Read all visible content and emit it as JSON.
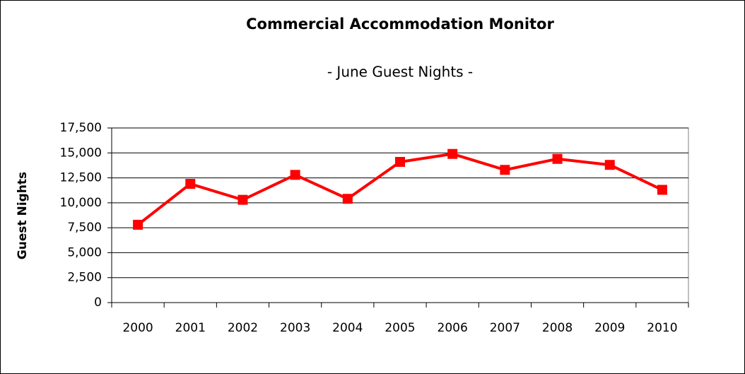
{
  "chart_data": {
    "type": "line",
    "title": "Commercial Accommodation Monitor",
    "subtitle": "- June Guest Nights -",
    "y_label": "Guest Nights",
    "categories": [
      "2000",
      "2001",
      "2002",
      "2003",
      "2004",
      "2005",
      "2006",
      "2007",
      "2008",
      "2009",
      "2010"
    ],
    "series": [
      {
        "name": "Guest Nights",
        "color": "#ff0000",
        "values": [
          7800,
          11900,
          10300,
          12800,
          10400,
          14100,
          14900,
          13300,
          14400,
          13800,
          11300
        ]
      }
    ],
    "ylim": [
      0,
      17500
    ],
    "yticks": [
      0,
      {
        "value": 2500,
        "label": "2,500"
      },
      {
        "value": 5000,
        "label": "5,000"
      },
      {
        "value": 7500,
        "label": "7,500"
      },
      {
        "value": 10000,
        "label": "10,000"
      },
      {
        "value": 12500,
        "label": "12,500"
      },
      {
        "value": 15000,
        "label": "15,000"
      },
      {
        "value": 17500,
        "label": "17,500"
      }
    ],
    "grid": true
  }
}
